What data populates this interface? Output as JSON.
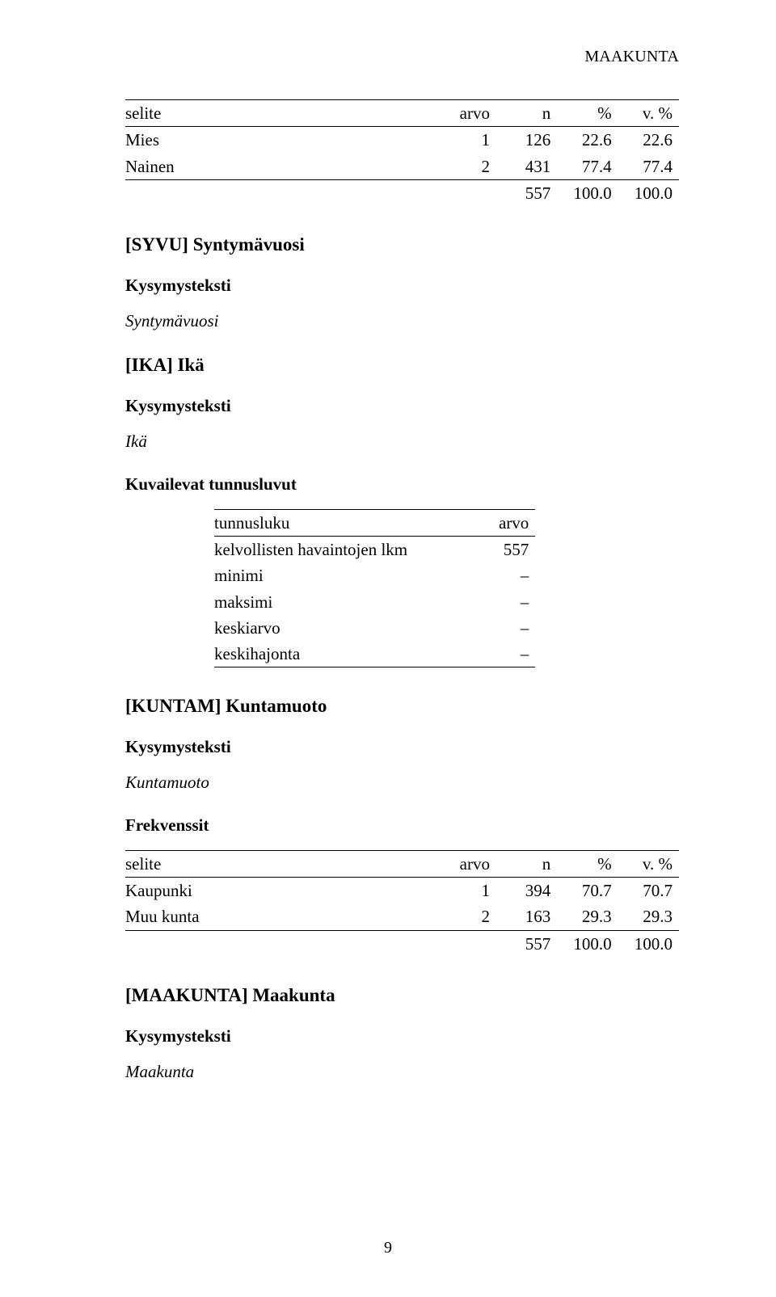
{
  "running_head": "MAAKUNTA",
  "page_number": "9",
  "tbl_hdr": {
    "selite": "selite",
    "arvo": "arvo",
    "n": "n",
    "pct": "%",
    "vpct": "v. %"
  },
  "gender_table": {
    "rows": [
      {
        "label": "Mies",
        "arvo": "1",
        "n": "126",
        "pct": "22.6",
        "vpct": "22.6"
      },
      {
        "label": "Nainen",
        "arvo": "2",
        "n": "431",
        "pct": "77.4",
        "vpct": "77.4"
      }
    ],
    "total": {
      "n": "557",
      "pct": "100.0",
      "vpct": "100.0"
    }
  },
  "syvu": {
    "title": "[SYVU] Syntymävuosi",
    "sub": "Kysymysteksti",
    "q": "Syntymävuosi"
  },
  "ika": {
    "title": "[IKA] Ikä",
    "sub": "Kysymysteksti",
    "q": "Ikä",
    "stats_title": "Kuvailevat tunnusluvut",
    "stats": {
      "hdr_key": "tunnusluku",
      "hdr_val": "arvo",
      "rows": [
        {
          "k": "kelvollisten havaintojen lkm",
          "v": "557"
        },
        {
          "k": "minimi",
          "v": "–"
        },
        {
          "k": "maksimi",
          "v": "–"
        },
        {
          "k": "keskiarvo",
          "v": "–"
        },
        {
          "k": "keskihajonta",
          "v": "–"
        }
      ]
    }
  },
  "kuntam": {
    "title": "[KUNTAM] Kuntamuoto",
    "sub": "Kysymysteksti",
    "q": "Kuntamuoto",
    "freq_title": "Frekvenssit",
    "rows": [
      {
        "label": "Kaupunki",
        "arvo": "1",
        "n": "394",
        "pct": "70.7",
        "vpct": "70.7"
      },
      {
        "label": "Muu kunta",
        "arvo": "2",
        "n": "163",
        "pct": "29.3",
        "vpct": "29.3"
      }
    ],
    "total": {
      "n": "557",
      "pct": "100.0",
      "vpct": "100.0"
    }
  },
  "maakunta": {
    "title": "[MAAKUNTA] Maakunta",
    "sub": "Kysymysteksti",
    "q": "Maakunta"
  }
}
